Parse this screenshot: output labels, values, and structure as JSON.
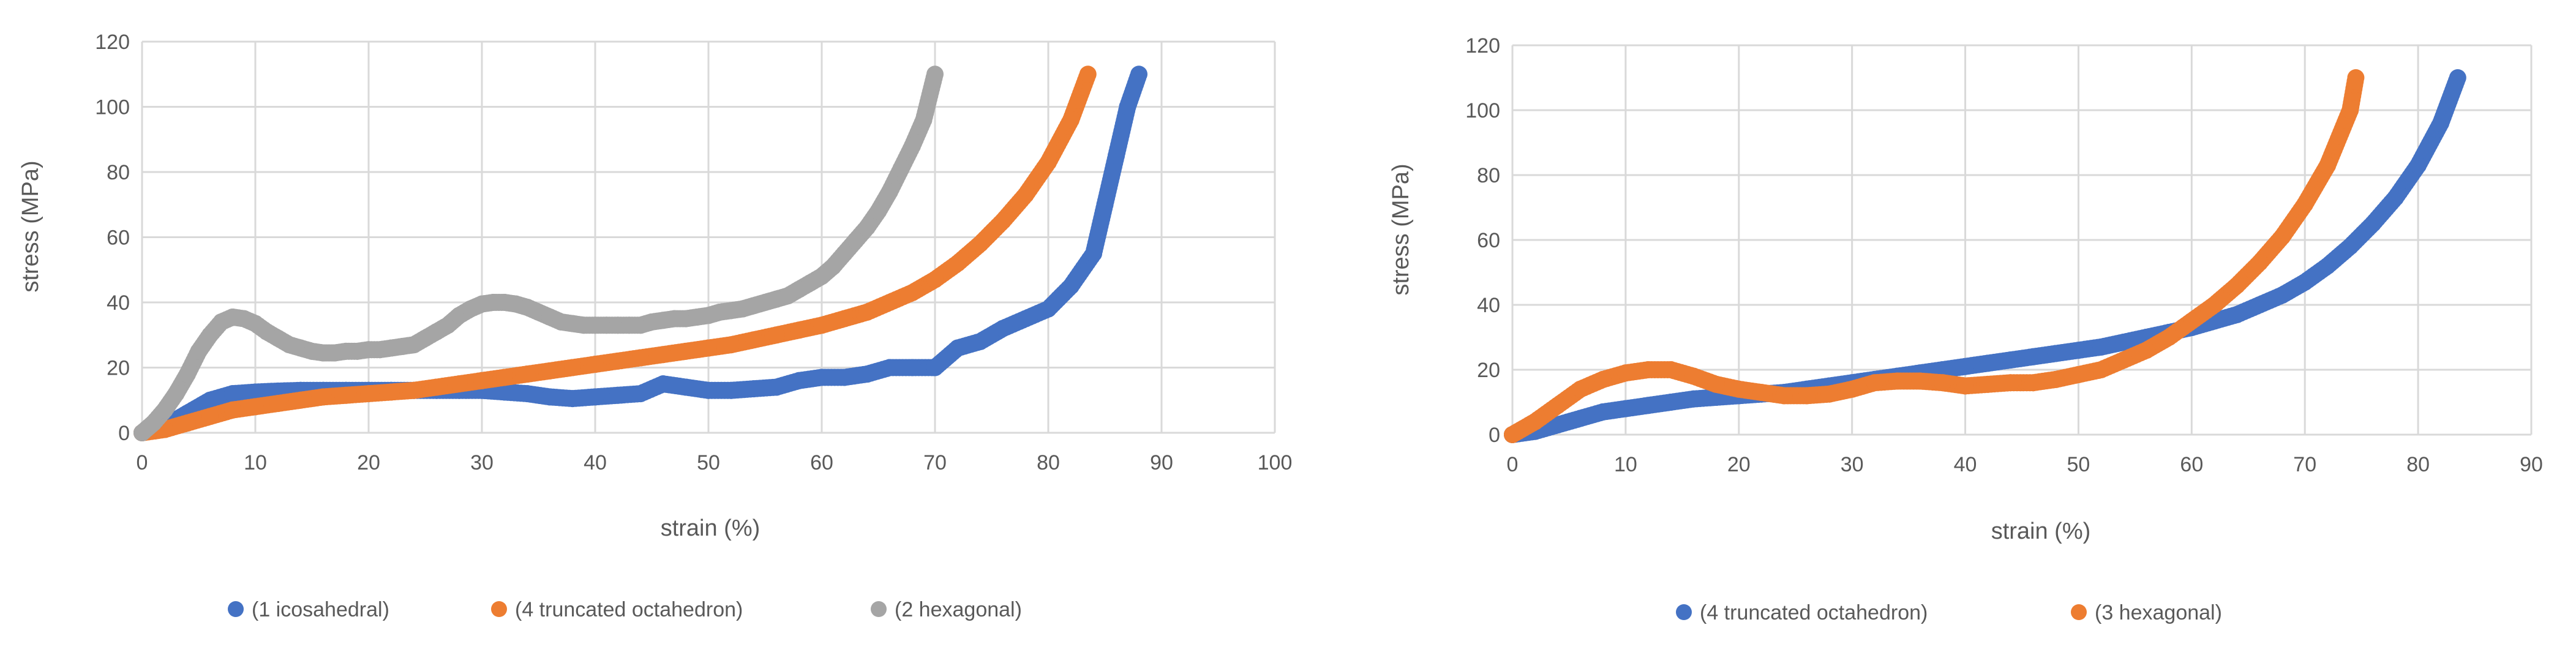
{
  "colors": {
    "blue": "#4472c4",
    "orange": "#ed7d31",
    "gray": "#a5a5a5"
  },
  "chart_data": [
    {
      "type": "scatter",
      "title": "",
      "xlabel": "strain (%)",
      "ylabel": "stress (MPa)",
      "xlim": [
        0,
        100
      ],
      "ylim": [
        0,
        120
      ],
      "xticks": [
        0,
        10,
        20,
        30,
        40,
        50,
        60,
        70,
        80,
        90,
        100
      ],
      "yticks": [
        0,
        20,
        40,
        60,
        80,
        100,
        120
      ],
      "xtick_labels": [
        "0",
        "10",
        "20",
        "30",
        "40",
        "50",
        "60",
        "70",
        "80",
        "90",
        "100"
      ],
      "ytick_labels": [
        "0",
        "20",
        "40",
        "60",
        "80",
        "100",
        "120"
      ],
      "legend_position": "bottom",
      "series": [
        {
          "name": "(1 icosahedral)",
          "color": "#4472c4",
          "x": [
            0,
            2,
            4,
            6,
            8,
            10,
            12,
            14,
            16,
            18,
            20,
            22,
            24,
            26,
            28,
            30,
            32,
            34,
            36,
            38,
            40,
            42,
            44,
            46,
            48,
            50,
            52,
            54,
            56,
            58,
            60,
            62,
            64,
            66,
            68,
            70,
            72,
            74,
            76,
            78,
            80,
            82,
            84,
            85,
            86,
            87,
            88
          ],
          "y": [
            0,
            2,
            6,
            10,
            12,
            12.5,
            12.8,
            13,
            13,
            13,
            13,
            13,
            13,
            13,
            13,
            13,
            12.5,
            12,
            11,
            10.5,
            11,
            11.5,
            12,
            15,
            14,
            13,
            13,
            13.5,
            14,
            16,
            17,
            17,
            18,
            20,
            20,
            20,
            26,
            28,
            32,
            35,
            38,
            45,
            55,
            70,
            85,
            100,
            110
          ]
        },
        {
          "name": "(4 truncated octahedron)",
          "color": "#ed7d31",
          "x": [
            0,
            2,
            4,
            6,
            8,
            10,
            12,
            14,
            16,
            18,
            20,
            22,
            24,
            26,
            28,
            30,
            32,
            34,
            36,
            38,
            40,
            42,
            44,
            46,
            48,
            50,
            52,
            54,
            56,
            58,
            60,
            62,
            64,
            66,
            68,
            70,
            72,
            74,
            76,
            78,
            80,
            82,
            83.5
          ],
          "y": [
            0,
            1,
            3,
            5,
            7,
            8,
            9,
            10,
            11,
            11.5,
            12,
            12.5,
            13,
            14,
            15,
            16,
            17,
            18,
            19,
            20,
            21,
            22,
            23,
            24,
            25,
            26,
            27,
            28.5,
            30,
            31.5,
            33,
            35,
            37,
            40,
            43,
            47,
            52,
            58,
            65,
            73,
            83,
            96,
            110
          ]
        },
        {
          "name": "(2 hexagonal)",
          "color": "#a5a5a5",
          "x": [
            0,
            1,
            2,
            3,
            4,
            5,
            6,
            7,
            8,
            9,
            10,
            11,
            12,
            13,
            14,
            15,
            16,
            17,
            18,
            19,
            20,
            21,
            22,
            23,
            24,
            25,
            26,
            27,
            28,
            29,
            30,
            31,
            32,
            33,
            34,
            35,
            36,
            37,
            38,
            39,
            40,
            41,
            42,
            43,
            44,
            45,
            46,
            47,
            48,
            49,
            50,
            51,
            52,
            53,
            54,
            55,
            56,
            57,
            58,
            59,
            60,
            61,
            62,
            63,
            64,
            65,
            66,
            67,
            68,
            69,
            70
          ],
          "y": [
            0,
            3,
            7,
            12,
            18,
            25,
            30,
            34,
            35.5,
            35,
            33.5,
            31,
            29,
            27,
            26,
            25,
            24.5,
            24.5,
            25,
            25,
            25.5,
            25.5,
            26,
            26.5,
            27,
            29,
            31,
            33,
            36,
            38,
            39.5,
            40,
            40,
            39.5,
            38.5,
            37,
            35.5,
            34,
            33.5,
            33,
            33,
            33,
            33,
            33,
            33,
            34,
            34.5,
            35,
            35,
            35.5,
            36,
            37,
            37.5,
            38,
            39,
            40,
            41,
            42,
            44,
            46,
            48,
            51,
            55,
            59,
            63,
            68,
            74,
            81,
            88,
            96,
            110
          ]
        }
      ]
    },
    {
      "type": "scatter",
      "title": "",
      "xlabel": "strain (%)",
      "ylabel": "stress (MPa)",
      "xlim": [
        0,
        90
      ],
      "ylim": [
        0,
        120
      ],
      "xticks": [
        0,
        10,
        20,
        30,
        40,
        50,
        60,
        70,
        80,
        90
      ],
      "yticks": [
        0,
        20,
        40,
        60,
        80,
        100,
        120
      ],
      "xtick_labels": [
        "0",
        "10",
        "20",
        "30",
        "40",
        "50",
        "60",
        "70",
        "80",
        "90"
      ],
      "ytick_labels": [
        "0",
        "20",
        "40",
        "60",
        "80",
        "100",
        "120"
      ],
      "legend_position": "bottom",
      "series": [
        {
          "name": "(4 truncated octahedron)",
          "color": "#4472c4",
          "x": [
            0,
            2,
            4,
            6,
            8,
            10,
            12,
            14,
            16,
            18,
            20,
            22,
            24,
            26,
            28,
            30,
            32,
            34,
            36,
            38,
            40,
            42,
            44,
            46,
            48,
            50,
            52,
            54,
            56,
            58,
            60,
            62,
            64,
            66,
            68,
            70,
            72,
            74,
            76,
            78,
            80,
            82,
            83.5
          ],
          "y": [
            0,
            1,
            3,
            5,
            7,
            8,
            9,
            10,
            11,
            11.5,
            12,
            12.5,
            13,
            14,
            15,
            16,
            17,
            18,
            19,
            20,
            21,
            22,
            23,
            24,
            25,
            26,
            27,
            28.5,
            30,
            31.5,
            33,
            35,
            37,
            40,
            43,
            47,
            52,
            58,
            65,
            73,
            83,
            96,
            110
          ]
        },
        {
          "name": "(3 hexagonal)",
          "color": "#ed7d31",
          "x": [
            0,
            2,
            4,
            6,
            8,
            10,
            12,
            14,
            16,
            18,
            20,
            22,
            24,
            26,
            28,
            30,
            32,
            34,
            36,
            38,
            40,
            42,
            44,
            46,
            48,
            50,
            52,
            54,
            56,
            58,
            60,
            62,
            64,
            66,
            68,
            70,
            72,
            74,
            74.5
          ],
          "y": [
            0,
            4,
            9,
            14,
            17,
            19,
            20,
            20,
            18,
            15.5,
            14,
            13,
            12,
            12,
            12.5,
            14,
            16,
            16.5,
            16.5,
            16,
            15,
            15.5,
            16,
            16,
            17,
            18.5,
            20,
            23,
            26,
            30,
            35,
            40,
            46,
            53,
            61,
            71,
            83,
            100,
            110
          ]
        }
      ]
    }
  ]
}
